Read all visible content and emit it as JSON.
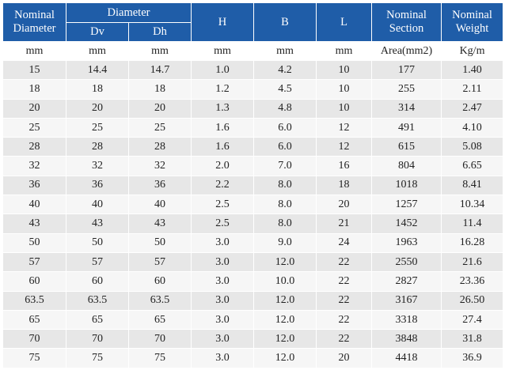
{
  "header": {
    "nominal_diameter": [
      "Nominal",
      "Diameter"
    ],
    "diameter": "Diameter",
    "dv": "Dv",
    "dh": "Dh",
    "h": "H",
    "b": "B",
    "l": "L",
    "nominal_section": [
      "Nominal",
      "Section"
    ],
    "nominal_weight": [
      "Nominal",
      "Weight"
    ]
  },
  "units": [
    "mm",
    "mm",
    "mm",
    "mm",
    "mm",
    "mm",
    "Area(mm2)",
    "Kg/m"
  ],
  "rows": [
    [
      "15",
      "14.4",
      "14.7",
      "1.0",
      "4.2",
      "10",
      "177",
      "1.40"
    ],
    [
      "18",
      "18",
      "18",
      "1.2",
      "4.5",
      "10",
      "255",
      "2.11"
    ],
    [
      "20",
      "20",
      "20",
      "1.3",
      "4.8",
      "10",
      "314",
      "2.47"
    ],
    [
      "25",
      "25",
      "25",
      "1.6",
      "6.0",
      "12",
      "491",
      "4.10"
    ],
    [
      "28",
      "28",
      "28",
      "1.6",
      "6.0",
      "12",
      "615",
      "5.08"
    ],
    [
      "32",
      "32",
      "32",
      "2.0",
      "7.0",
      "16",
      "804",
      "6.65"
    ],
    [
      "36",
      "36",
      "36",
      "2.2",
      "8.0",
      "18",
      "1018",
      "8.41"
    ],
    [
      "40",
      "40",
      "40",
      "2.5",
      "8.0",
      "20",
      "1257",
      "10.34"
    ],
    [
      "43",
      "43",
      "43",
      "2.5",
      "8.0",
      "21",
      "1452",
      "11.4"
    ],
    [
      "50",
      "50",
      "50",
      "3.0",
      "9.0",
      "24",
      "1963",
      "16.28"
    ],
    [
      "57",
      "57",
      "57",
      "3.0",
      "12.0",
      "22",
      "2550",
      "21.6"
    ],
    [
      "60",
      "60",
      "60",
      "3.0",
      "10.0",
      "22",
      "2827",
      "23.36"
    ],
    [
      "63.5",
      "63.5",
      "63.5",
      "3.0",
      "12.0",
      "22",
      "3167",
      "26.50"
    ],
    [
      "65",
      "65",
      "65",
      "3.0",
      "12.0",
      "22",
      "3318",
      "27.4"
    ],
    [
      "70",
      "70",
      "70",
      "3.0",
      "12.0",
      "22",
      "3848",
      "31.8"
    ],
    [
      "75",
      "75",
      "75",
      "3.0",
      "12.0",
      "20",
      "4418",
      "36.9"
    ]
  ],
  "colors": {
    "header_bg": "#1f5da8",
    "header_text": "#ffffff",
    "row_odd_bg": "#e7e7e7",
    "row_even_bg": "#f6f6f6"
  }
}
